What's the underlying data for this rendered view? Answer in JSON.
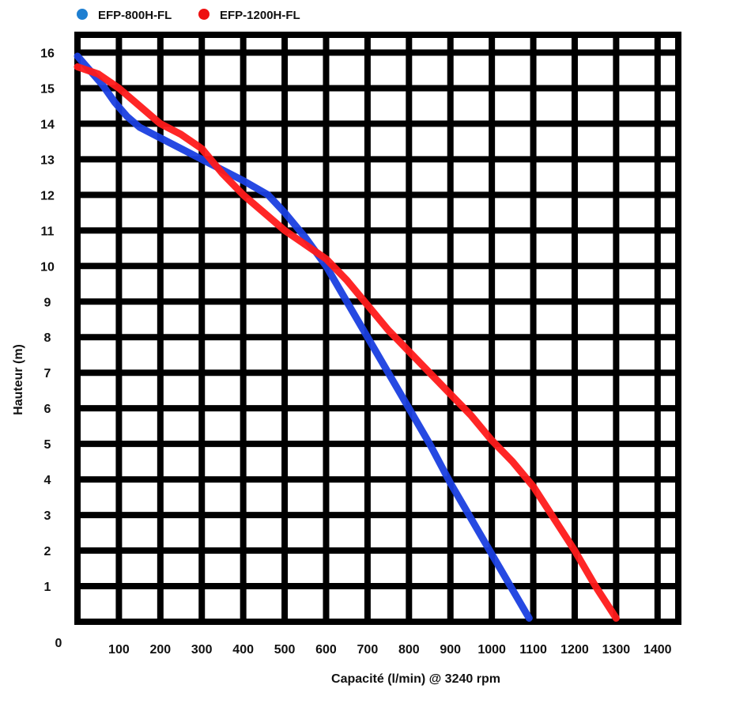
{
  "chart_data": {
    "type": "line",
    "title": "",
    "xlabel": "Capacité (l/min) @ 3240 rpm",
    "ylabel": "Hauteur (m)",
    "xlim": [
      0,
      1450
    ],
    "ylim": [
      0,
      16.5
    ],
    "grid": true,
    "legend_position": "top-left",
    "origin_label": "0",
    "x_ticks": [
      100,
      200,
      300,
      400,
      500,
      600,
      700,
      800,
      900,
      1000,
      1100,
      1200,
      1300,
      1400
    ],
    "y_ticks": [
      1,
      2,
      3,
      4,
      5,
      6,
      7,
      8,
      9,
      10,
      11,
      12,
      13,
      14,
      15,
      16
    ],
    "series": [
      {
        "name": "EFP-800H-FL",
        "color": "#1a3fe0",
        "legend_color": "#1e7fd1",
        "x": [
          0,
          30,
          60,
          90,
          120,
          150,
          200,
          250,
          300,
          350,
          400,
          460,
          500,
          550,
          600,
          650,
          700,
          750,
          800,
          850,
          900,
          950,
          1000,
          1050,
          1090
        ],
        "y": [
          15.9,
          15.5,
          15.1,
          14.6,
          14.2,
          13.9,
          13.6,
          13.3,
          13.0,
          12.7,
          12.4,
          12.0,
          11.5,
          10.8,
          10.0,
          9.0,
          8.0,
          7.0,
          6.0,
          5.0,
          3.9,
          2.9,
          1.9,
          0.9,
          0.1
        ]
      },
      {
        "name": "EFP-1200H-FL",
        "color": "#ff1a1a",
        "legend_color": "#ee1111",
        "x": [
          0,
          50,
          100,
          150,
          200,
          250,
          300,
          350,
          400,
          450,
          500,
          550,
          600,
          650,
          700,
          750,
          800,
          850,
          900,
          950,
          1000,
          1050,
          1100,
          1150,
          1200,
          1250,
          1300
        ],
        "y": [
          15.6,
          15.4,
          15.0,
          14.5,
          14.0,
          13.7,
          13.3,
          12.6,
          12.0,
          11.5,
          11.0,
          10.6,
          10.2,
          9.6,
          8.9,
          8.2,
          7.6,
          7.0,
          6.4,
          5.8,
          5.1,
          4.5,
          3.8,
          2.9,
          2.0,
          1.0,
          0.1
        ]
      }
    ]
  }
}
